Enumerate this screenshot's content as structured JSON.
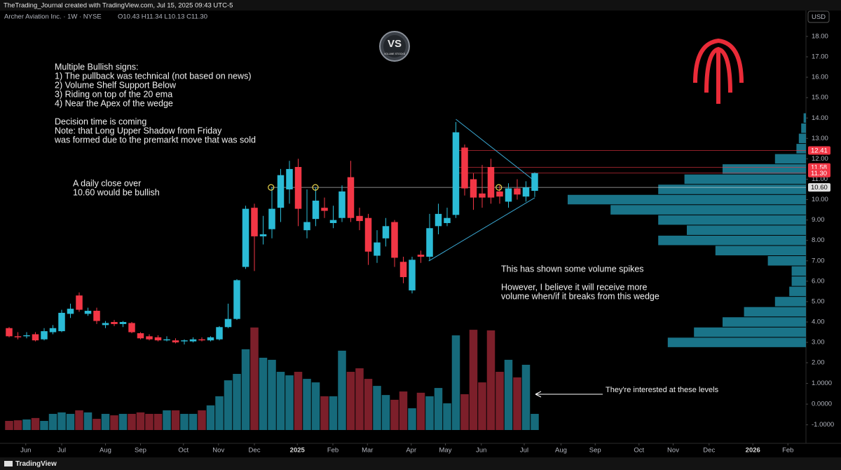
{
  "chart_data": {
    "type": "candlestick",
    "credit": "TheTrading_Journal created with TradingView.com, Jul 15, 2025 09:43 UTC-5",
    "title": "Archer Aviation Inc. · 1W · NYSE",
    "ohlc_label": "O10.43 H11.34 L10.13 C11.30",
    "currency": "USD",
    "footer": "TradingView",
    "logo_text": "VS",
    "logo_subtext": "VOLUME STOCKS",
    "up_color": "#2bbbd6",
    "down_color": "#f23645",
    "x": [
      0,
      1,
      2,
      3,
      4,
      5,
      6,
      7,
      8,
      9,
      10,
      11,
      12,
      13,
      14,
      15,
      16,
      17,
      18,
      19,
      20,
      21,
      22,
      23,
      24,
      25,
      26,
      27,
      28,
      29,
      30,
      31,
      32,
      33,
      34,
      35,
      36,
      37,
      38,
      39,
      40,
      41,
      42,
      43,
      44,
      45,
      46,
      47,
      48,
      49,
      50,
      51,
      52,
      53,
      54,
      55,
      56,
      57,
      58,
      59,
      60
    ],
    "open": [
      3.7,
      3.3,
      3.3,
      3.4,
      3.15,
      3.5,
      3.55,
      4.4,
      5.3,
      4.4,
      4.55,
      3.85,
      4.0,
      3.9,
      3.95,
      3.45,
      3.3,
      3.25,
      3.1,
      3.1,
      3.05,
      3.05,
      3.15,
      3.1,
      3.15,
      3.75,
      4.15,
      6.7,
      9.6,
      8.2,
      8.55,
      9.6,
      10.5,
      11.6,
      8.5,
      9.05,
      9.6,
      8.85,
      9.1,
      11.1,
      9.2,
      9.1,
      7.25,
      8.1,
      8.9,
      6.95,
      5.55,
      7.3,
      7.2,
      8.7,
      8.85,
      9.25,
      12.55,
      11.0,
      10.3,
      11.6,
      10.4,
      9.9,
      10.55,
      10.15,
      10.43
    ],
    "high": [
      3.75,
      3.5,
      3.5,
      3.5,
      3.7,
      3.85,
      4.6,
      4.9,
      5.45,
      4.7,
      4.7,
      4.05,
      4.1,
      4.05,
      4.0,
      3.5,
      3.4,
      3.35,
      3.3,
      3.2,
      3.15,
      3.25,
      3.25,
      3.3,
      3.8,
      4.9,
      6.1,
      9.7,
      9.8,
      9.2,
      10.6,
      11.5,
      11.9,
      12.0,
      10.5,
      10.6,
      10.1,
      9.7,
      10.7,
      11.9,
      9.6,
      9.3,
      8.5,
      9.1,
      9.0,
      7.2,
      7.2,
      7.5,
      9.3,
      9.8,
      9.6,
      13.8,
      12.7,
      11.3,
      11.7,
      12.0,
      10.7,
      10.8,
      11.0,
      10.9,
      11.34
    ],
    "low": [
      3.25,
      3.15,
      3.2,
      3.05,
      3.1,
      3.4,
      3.5,
      4.2,
      4.5,
      4.3,
      3.9,
      3.7,
      3.8,
      3.75,
      3.45,
      3.15,
      3.1,
      3.05,
      3.05,
      2.95,
      2.9,
      3.0,
      3.05,
      3.05,
      3.1,
      3.7,
      4.1,
      6.6,
      6.5,
      7.8,
      8.1,
      8.9,
      9.8,
      8.7,
      8.1,
      8.7,
      9.1,
      8.6,
      8.9,
      8.9,
      8.5,
      6.8,
      6.9,
      7.7,
      6.7,
      5.9,
      5.4,
      6.9,
      7.0,
      8.3,
      8.7,
      9.1,
      10.2,
      9.5,
      9.6,
      9.8,
      9.8,
      9.6,
      10.0,
      9.9,
      10.13
    ],
    "close": [
      3.3,
      3.25,
      3.35,
      3.1,
      3.55,
      3.7,
      4.45,
      4.65,
      4.6,
      4.55,
      4.05,
      3.95,
      3.9,
      4.0,
      3.5,
      3.2,
      3.15,
      3.1,
      3.15,
      3.0,
      3.1,
      3.15,
      3.1,
      3.25,
      3.75,
      4.15,
      6.05,
      9.55,
      8.2,
      8.3,
      9.55,
      11.2,
      11.5,
      9.55,
      8.9,
      9.95,
      9.45,
      9.0,
      10.4,
      9.1,
      8.95,
      7.45,
      7.9,
      8.7,
      7.15,
      6.2,
      7.05,
      7.2,
      8.6,
      9.3,
      9.1,
      13.3,
      10.55,
      10.1,
      10.1,
      10.1,
      10.15,
      10.55,
      10.25,
      10.6,
      11.3
    ],
    "xlim": [
      -1.04,
      90.96
    ],
    "xticks": [
      {
        "value": 1.9,
        "label": "Jun"
      },
      {
        "value": 6.0,
        "label": "Jul"
      },
      {
        "value": 11.0,
        "label": "Aug"
      },
      {
        "value": 15.0,
        "label": "Sep"
      },
      {
        "value": 19.9,
        "label": "Oct"
      },
      {
        "value": 23.9,
        "label": "Nov"
      },
      {
        "value": 28.0,
        "label": "Dec"
      },
      {
        "value": 32.9,
        "label": "2025"
      },
      {
        "value": 36.96,
        "label": "Feb"
      },
      {
        "value": 40.9,
        "label": "Mar"
      },
      {
        "value": 45.9,
        "label": "Apr"
      },
      {
        "value": 49.8,
        "label": "May"
      },
      {
        "value": 53.9,
        "label": "Jun"
      },
      {
        "value": 58.8,
        "label": "Jul"
      },
      {
        "value": 63.0,
        "label": "Aug"
      },
      {
        "value": 66.9,
        "label": "Sep"
      },
      {
        "value": 71.9,
        "label": "Oct"
      },
      {
        "value": 75.8,
        "label": "Nov"
      },
      {
        "value": 79.9,
        "label": "Dec"
      },
      {
        "value": 84.9,
        "label": "2026"
      },
      {
        "value": 88.9,
        "label": "Feb"
      }
    ],
    "ylim": [
      -1.88,
      18.41
    ],
    "yticks": [
      {
        "value": 3,
        "label": "3.00"
      },
      {
        "value": 4,
        "label": "4.00"
      },
      {
        "value": 5,
        "label": "5.00"
      },
      {
        "value": 6,
        "label": "6.00"
      },
      {
        "value": 7,
        "label": "7.00"
      },
      {
        "value": 8,
        "label": "8.00"
      },
      {
        "value": 9,
        "label": "9.00"
      },
      {
        "value": 10,
        "label": "10.00"
      },
      {
        "value": 11,
        "label": "11.00"
      },
      {
        "value": 12,
        "label": "12.00"
      },
      {
        "value": 13,
        "label": "13.00"
      },
      {
        "value": 14,
        "label": "14.00"
      },
      {
        "value": 15,
        "label": "15.00"
      },
      {
        "value": 16,
        "label": "16.00"
      },
      {
        "value": 17,
        "label": "17.00"
      },
      {
        "value": 18,
        "label": "18.00"
      }
    ],
    "volume": {
      "values": [
        -0.81,
        -0.78,
        -0.74,
        -0.67,
        -0.81,
        -0.47,
        -0.4,
        -0.47,
        -0.3,
        -0.4,
        -0.71,
        -0.47,
        -0.54,
        -0.47,
        -0.47,
        -0.4,
        -0.47,
        -0.47,
        -0.3,
        -0.3,
        -0.47,
        -0.47,
        -0.3,
        -0.06,
        0.38,
        1.15,
        1.46,
        2.65,
        3.7,
        2.24,
        2.14,
        1.56,
        1.39,
        1.56,
        1.22,
        1.05,
        0.38,
        0.38,
        2.58,
        1.56,
        1.73,
        1.22,
        0.88,
        0.44,
        0.21,
        0.61,
        -0.2,
        0.55,
        0.38,
        0.78,
        0.04,
        3.32,
        0.48,
        3.59,
        1.05,
        3.56,
        1.56,
        2.14,
        1.29,
        1.9,
        -0.47
      ],
      "up_color": "#166a7b",
      "down_color": "#7c1f2a",
      "y2lim": [
        -1.25,
        4.0
      ],
      "y2ticks": [
        {
          "value": 2,
          "label": "2.00"
        },
        {
          "value": 1,
          "label": "1.0000"
        },
        {
          "value": 0,
          "label": "0.0000"
        },
        {
          "value": -1,
          "label": "-1.0000"
        }
      ]
    },
    "volume_profile": {
      "levels": [
        3.0,
        3.5,
        4.0,
        4.5,
        5.0,
        5.5,
        6.0,
        6.5,
        7.0,
        7.5,
        8.0,
        8.5,
        9.0,
        9.5,
        10.0,
        10.5,
        11.0,
        11.5,
        12.0,
        12.5,
        13.0,
        13.5,
        14.0
      ],
      "values": [
        58,
        47,
        35,
        26,
        13,
        7,
        6,
        6,
        16,
        38,
        62,
        50,
        62,
        82,
        100,
        62,
        51,
        35,
        13,
        4,
        3,
        2,
        1
      ],
      "xlim": [
        0,
        100
      ],
      "color": "#1a7489"
    },
    "price_lines": [
      {
        "value": 12.41,
        "label": "12.41",
        "color": "#f23645"
      },
      {
        "value": 11.58,
        "label": "11.58",
        "color": "#f23645"
      },
      {
        "value": 11.3,
        "label": "11.30",
        "color": "#f23645"
      },
      {
        "value": 10.6,
        "label": "10.60",
        "color": "#e0e0e0"
      }
    ],
    "markers": {
      "x": [
        29.9,
        34.96,
        55.9
      ],
      "y": [
        10.6,
        10.6,
        10.6
      ],
      "color": "#e8d44d"
    },
    "wedge": {
      "color": "#3ba9d4",
      "upper": {
        "x": [
          51,
          60
        ],
        "y": [
          13.94,
          10.91
        ]
      },
      "lower": {
        "x": [
          47.9,
          60
        ],
        "y": [
          6.99,
          10.09
        ]
      }
    },
    "annotations": {
      "signs": [
        "Multiple Bullish signs:",
        "1) The pullback was technical (not based on news)",
        "2) Volume Shelf Support Below",
        "3) Riding on top of the 20 ema",
        "4) Near the Apex of the wedge"
      ],
      "decision": [
        "Decision time is coming",
        "Note: that Long Upper Shadow from Friday",
        "was formed due to the premarkt move that was sold"
      ],
      "close": [
        "A daily close over",
        "10.60 would be bullish"
      ],
      "spikes": [
        "This has shown some volume spikes"
      ],
      "breakout": [
        "However, I believe it will receive more",
        "volume when/if it breaks from this wedge"
      ],
      "interest": "They're interested at these levels"
    }
  }
}
